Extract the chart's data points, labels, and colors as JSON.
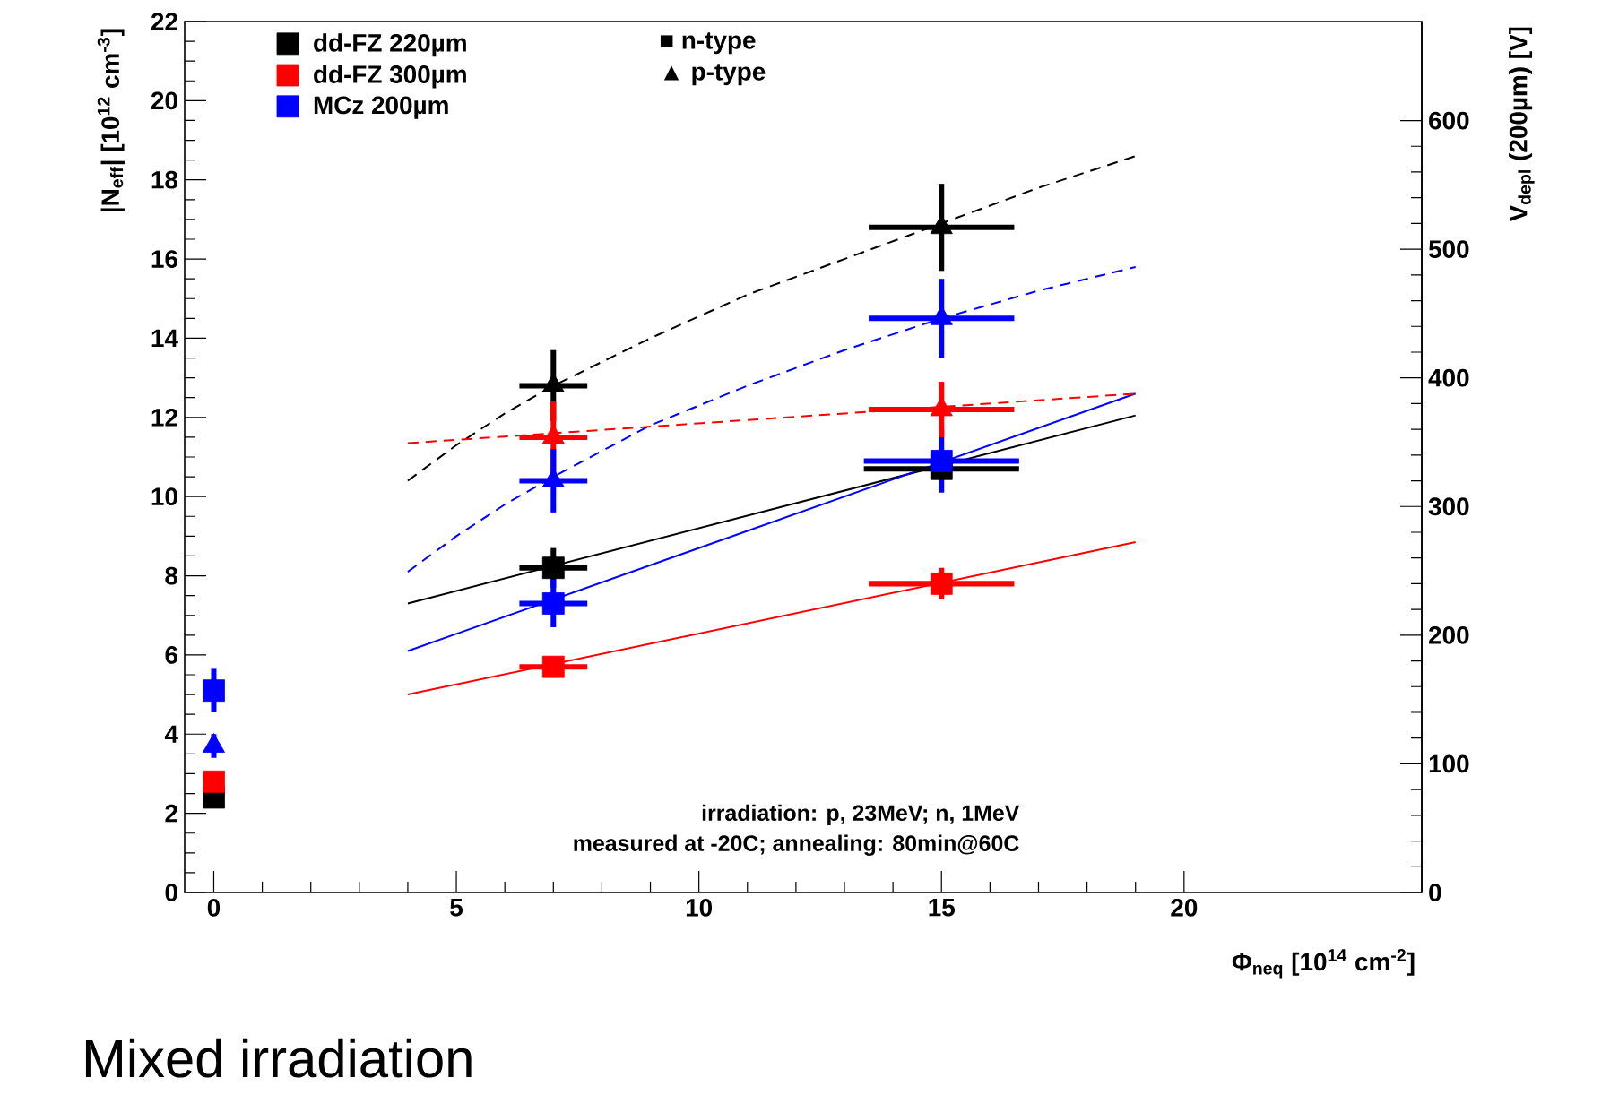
{
  "chart_data": {
    "type": "scatter",
    "xlabel": "Φ$_{neq}$ [10$^{14}$ cm$^{-2}$]",
    "ylabel": "|N$_{eff}$| [10$^{12}$ cm$^{-3}$]",
    "y2label": "V$_{depl}$ (200µm) [V]",
    "xlim": [
      -0.6,
      24.9
    ],
    "xticks": [
      0,
      5,
      10,
      15,
      20
    ],
    "ylim": [
      0,
      22
    ],
    "yticks": [
      0,
      2,
      4,
      6,
      8,
      10,
      12,
      14,
      16,
      18,
      20,
      22
    ],
    "y2lim": [
      0,
      677
    ],
    "y2ticks": [
      0,
      100,
      200,
      300,
      400,
      500,
      600
    ],
    "legend": "top left",
    "annotations": [
      "■ n-type",
      "▲ p-type",
      "irradiation: p, 23MeV; n, 1MeV",
      "measured at -20C; annealing: 80min@60C",
      "Mixed irradiation"
    ],
    "series": [
      {
        "type": "line",
        "color": "#000000",
        "line_style": "solid",
        "x": [
          4,
          19
        ],
        "values": [
          7.3,
          12.05
        ]
      },
      {
        "type": "line",
        "color": "#ff0000",
        "line_style": "solid",
        "x": [
          4,
          19
        ],
        "values": [
          5.0,
          8.85
        ]
      },
      {
        "type": "line",
        "color": "#0000ff",
        "line_style": "solid",
        "x": [
          4,
          19
        ],
        "values": [
          6.1,
          12.6
        ]
      },
      {
        "type": "line",
        "color": "#000000",
        "line_style": "dashed",
        "x": [
          4,
          5,
          6,
          7,
          9,
          11,
          13,
          15,
          17,
          19
        ],
        "values": [
          10.4,
          11.3,
          12.1,
          12.8,
          14.0,
          15.1,
          16.0,
          16.9,
          17.8,
          18.6
        ]
      },
      {
        "type": "line",
        "color": "#ff0000",
        "line_style": "dashed",
        "x": [
          4,
          19
        ],
        "values": [
          11.35,
          12.6
        ]
      },
      {
        "type": "line",
        "color": "#0000ff",
        "line_style": "dashed",
        "x": [
          4,
          5,
          6,
          7,
          9,
          11,
          13,
          15,
          17,
          19
        ],
        "values": [
          8.1,
          9.0,
          9.8,
          10.5,
          11.8,
          12.8,
          13.7,
          14.5,
          15.2,
          15.8
        ]
      },
      {
        "name": "dd-FZ 220µm",
        "marker": "square",
        "color": "#000000",
        "x": [
          0,
          7,
          15
        ],
        "values": [
          2.4,
          8.2,
          10.7
        ],
        "errors": [
          null,
          0.5,
          null
        ],
        "xerrors": [
          null,
          0.7,
          1.6
        ]
      },
      {
        "name": "dd-FZ 300µm",
        "marker": "square",
        "color": "#ff0000",
        "x": [
          0,
          7,
          15
        ],
        "values": [
          2.8,
          5.7,
          7.8
        ],
        "errors": [
          null,
          0.2,
          0.4
        ],
        "xerrors": [
          null,
          0.7,
          1.5
        ]
      },
      {
        "name": "MCz 200µm",
        "marker": "square",
        "color": "#0000ff",
        "x": [
          0,
          7,
          15
        ],
        "values": [
          5.1,
          7.3,
          10.9
        ],
        "errors": [
          0.55,
          0.6,
          0.8
        ],
        "xerrors": [
          null,
          0.7,
          1.6
        ]
      },
      {
        "marker": "triangle",
        "color": "#000000",
        "x": [
          7,
          15
        ],
        "values": [
          12.8,
          16.8
        ],
        "errors": [
          0.9,
          1.1
        ],
        "xerrors": [
          0.7,
          1.5
        ]
      },
      {
        "marker": "triangle",
        "color": "#ff0000",
        "x": [
          7,
          15
        ],
        "values": [
          11.5,
          12.2
        ],
        "errors": [
          0.9,
          0.7
        ],
        "xerrors": [
          0.7,
          1.5
        ]
      },
      {
        "marker": "triangle",
        "color": "#0000ff",
        "x": [
          0,
          7,
          15
        ],
        "values": [
          3.7,
          10.4,
          14.5
        ],
        "errors": [
          0.3,
          0.8,
          1.0
        ],
        "xerrors": [
          null,
          0.7,
          1.5
        ]
      }
    ]
  }
}
